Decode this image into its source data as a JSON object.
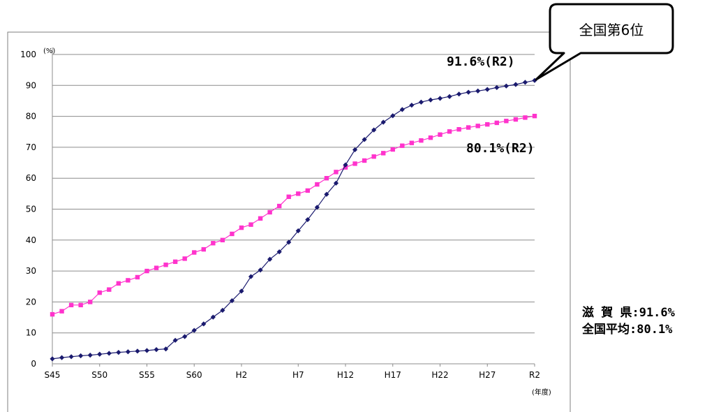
{
  "chart_data": {
    "type": "line",
    "x_tick_labels": [
      "S45",
      "S50",
      "S55",
      "S60",
      "H2",
      "H7",
      "H12",
      "H17",
      "H22",
      "H27",
      "R2"
    ],
    "y_ticks": [
      0,
      10,
      20,
      30,
      40,
      50,
      60,
      70,
      80,
      90,
      100
    ],
    "ylim": [
      0,
      100
    ],
    "y_unit": "(%)",
    "x_unit": "(年度)",
    "grid": true,
    "series": [
      {
        "name": "滋 賀 県",
        "color": "#1a1a6e",
        "marker": "diamond",
        "values": [
          1.6,
          2.0,
          2.3,
          2.6,
          2.8,
          3.1,
          3.4,
          3.7,
          3.9,
          4.1,
          4.3,
          4.6,
          4.8,
          7.6,
          8.8,
          10.8,
          12.9,
          15.1,
          17.3,
          20.4,
          23.5,
          28.2,
          30.3,
          33.8,
          36.2,
          39.3,
          43.0,
          46.6,
          50.6,
          54.8,
          58.4,
          64.3,
          69.2,
          72.5,
          75.6,
          78.1,
          80.2,
          82.2,
          83.6,
          84.6,
          85.3,
          85.8,
          86.4,
          87.2,
          87.8,
          88.2,
          88.7,
          89.3,
          89.8,
          90.3,
          91.0,
          91.6
        ]
      },
      {
        "name": "全国平均",
        "color": "#ff33cc",
        "marker": "square",
        "values": [
          16.0,
          17.0,
          19.0,
          19.0,
          20.0,
          23.0,
          24.0,
          26.0,
          27.0,
          28.0,
          30.0,
          31.0,
          32.0,
          33.0,
          34.0,
          36.0,
          37.0,
          39.0,
          40.0,
          42.0,
          44.0,
          45.0,
          47.0,
          49.0,
          51.0,
          54.0,
          55.0,
          56.0,
          58.0,
          60.0,
          62.0,
          63.5,
          64.7,
          65.7,
          67.0,
          68.1,
          69.3,
          70.5,
          71.4,
          72.2,
          73.1,
          74.1,
          75.1,
          75.8,
          76.4,
          76.9,
          77.4,
          77.9,
          78.5,
          79.0,
          79.6,
          80.1
        ]
      }
    ],
    "annotations": {
      "shiga_end": "91.6%(R2)",
      "national_end": "80.1%(R2)",
      "rank_badge": "全国第6位"
    },
    "legend_text": [
      "滋 賀 県:91.6%",
      "全国平均:80.1%"
    ]
  }
}
